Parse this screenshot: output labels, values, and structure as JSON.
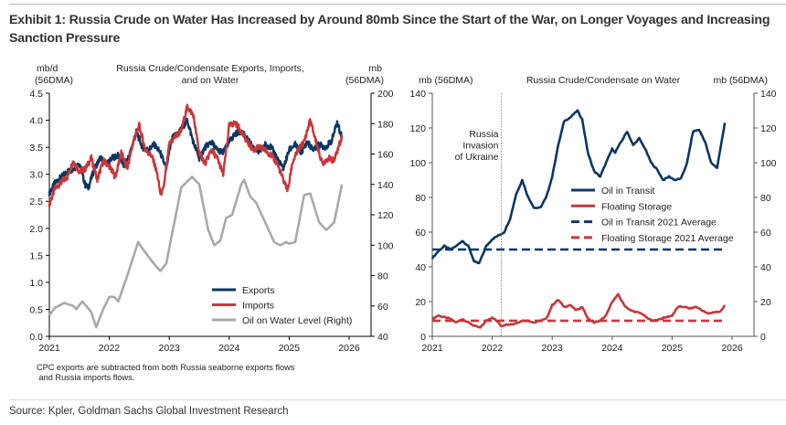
{
  "exhibit_title": "Exhibit 1: Russia Crude on Water Has Increased by Around 80mb Since the Start of the War, on Longer Voyages and Increasing Sanction Pressure",
  "footnote": "CPC exports are subtracted from both Russia seaborne exports flows\n and Russia imports flows.",
  "source": "Source: Kpler, Goldman Sachs Global Investment Research",
  "colors": {
    "navy": "#0b3765",
    "red": "#c8363a",
    "gray": "#a9a9a9"
  },
  "chart_data": [
    {
      "type": "line",
      "title": "Russia Crude/Condensate Exports, Imports,\nand on Water",
      "title_lines": [
        "Russia Crude/Condensate Exports, Imports,",
        "and on Water"
      ],
      "ylabel_left_lines": [
        "mb/d",
        "(56DMA)"
      ],
      "ylabel_right_lines": [
        "mb",
        "(56DMA)"
      ],
      "xlim": [
        2021,
        2026.4
      ],
      "ylim_left": [
        0,
        4.5
      ],
      "ylim_right": [
        40,
        200
      ],
      "x_ticks": [
        "2021",
        "2022",
        "2023",
        "2024",
        "2025",
        "2026"
      ],
      "y_ticks_left": [
        "0.0",
        "0.5",
        "1.0",
        "1.5",
        "2.0",
        "2.5",
        "3.0",
        "3.5",
        "4.0",
        "4.5"
      ],
      "y_ticks_right": [
        "40",
        "60",
        "80",
        "100",
        "120",
        "140",
        "160",
        "180",
        "200"
      ],
      "legend_position": "bottom-right",
      "series": [
        {
          "name": "Exports",
          "axis": "left",
          "color": "#0b3765",
          "x": [
            2021.0,
            2021.1,
            2021.2,
            2021.3,
            2021.4,
            2021.5,
            2021.6,
            2021.65,
            2021.75,
            2021.85,
            2021.95,
            2022.05,
            2022.15,
            2022.25,
            2022.35,
            2022.45,
            2022.55,
            2022.65,
            2022.75,
            2022.85,
            2022.95,
            2023.05,
            2023.15,
            2023.3,
            2023.4,
            2023.5,
            2023.6,
            2023.7,
            2023.8,
            2023.9,
            2024.0,
            2024.1,
            2024.2,
            2024.3,
            2024.4,
            2024.5,
            2024.6,
            2024.7,
            2024.8,
            2024.9,
            2025.0,
            2025.1,
            2025.2,
            2025.3,
            2025.4,
            2025.5,
            2025.6,
            2025.7,
            2025.8,
            2025.88
          ],
          "values": [
            2.65,
            2.85,
            2.95,
            3.05,
            3.1,
            3.2,
            2.8,
            2.75,
            3.1,
            3.3,
            3.2,
            3.3,
            3.35,
            3.15,
            3.4,
            3.8,
            3.5,
            3.45,
            3.55,
            3.4,
            3.1,
            3.7,
            3.75,
            4.0,
            3.6,
            3.3,
            3.5,
            3.6,
            3.45,
            3.4,
            3.6,
            3.75,
            3.8,
            3.65,
            3.5,
            3.4,
            3.55,
            3.5,
            3.3,
            3.1,
            3.45,
            3.55,
            3.4,
            3.6,
            3.45,
            3.55,
            3.5,
            3.6,
            3.95,
            3.7
          ]
        },
        {
          "name": "Imports",
          "axis": "left",
          "color": "#c8363a",
          "x": [
            2021.0,
            2021.1,
            2021.2,
            2021.3,
            2021.4,
            2021.5,
            2021.6,
            2021.7,
            2021.8,
            2021.9,
            2022.0,
            2022.1,
            2022.2,
            2022.3,
            2022.4,
            2022.5,
            2022.6,
            2022.7,
            2022.75,
            2022.8,
            2022.85,
            2022.9,
            2023.0,
            2023.1,
            2023.2,
            2023.3,
            2023.4,
            2023.5,
            2023.6,
            2023.7,
            2023.8,
            2023.9,
            2024.0,
            2024.1,
            2024.2,
            2024.3,
            2024.4,
            2024.5,
            2024.6,
            2024.7,
            2024.8,
            2024.9,
            2024.98,
            2025.05,
            2025.15,
            2025.25,
            2025.35,
            2025.45,
            2025.55,
            2025.65,
            2025.75,
            2025.88
          ],
          "values": [
            2.45,
            2.75,
            2.85,
            2.95,
            3.25,
            3.05,
            3.1,
            3.3,
            2.9,
            3.25,
            3.15,
            2.95,
            3.4,
            3.1,
            3.6,
            3.9,
            3.45,
            3.35,
            3.2,
            3.0,
            2.65,
            2.7,
            3.55,
            3.7,
            3.8,
            4.25,
            4.1,
            3.4,
            3.2,
            3.45,
            3.3,
            3.0,
            3.9,
            3.95,
            3.8,
            3.6,
            3.45,
            3.5,
            3.45,
            3.35,
            3.2,
            2.9,
            2.7,
            3.2,
            3.45,
            3.6,
            4.0,
            3.6,
            3.2,
            3.3,
            3.25,
            3.7
          ]
        },
        {
          "name": "Oil on Water Level (Right)",
          "axis": "right",
          "color": "#a9a9a9",
          "x": [
            2021.0,
            2021.1,
            2021.25,
            2021.4,
            2021.45,
            2021.55,
            2021.7,
            2021.78,
            2021.9,
            2022.0,
            2022.08,
            2022.15,
            2022.3,
            2022.48,
            2022.55,
            2022.7,
            2022.85,
            2022.95,
            2023.0,
            2023.2,
            2023.3,
            2023.38,
            2023.5,
            2023.65,
            2023.75,
            2023.85,
            2023.95,
            2024.05,
            2024.2,
            2024.25,
            2024.35,
            2024.45,
            2024.6,
            2024.75,
            2024.85,
            2024.95,
            2025.0,
            2025.1,
            2025.25,
            2025.35,
            2025.5,
            2025.62,
            2025.75,
            2025.88
          ],
          "values": [
            54,
            59,
            62,
            60,
            58,
            63,
            56,
            46,
            58,
            66,
            66,
            63,
            80,
            102,
            98,
            90,
            83,
            88,
            98,
            138,
            142,
            145,
            140,
            110,
            100,
            103,
            118,
            120,
            140,
            143,
            132,
            128,
            115,
            102,
            100,
            102,
            101,
            102,
            133,
            134,
            115,
            110,
            115,
            140
          ]
        }
      ]
    },
    {
      "type": "line",
      "title": "Russia Crude/Condensate on Water",
      "ylabel_left": "mb (56DMA)",
      "ylabel_right": "mb (56DMA)",
      "xlim": [
        2021,
        2026.4
      ],
      "ylim": [
        0,
        140
      ],
      "x_ticks": [
        "2021",
        "2022",
        "2023",
        "2024",
        "2025",
        "2026"
      ],
      "y_ticks": [
        "0",
        "20",
        "40",
        "60",
        "80",
        "100",
        "120",
        "140"
      ],
      "legend_position": "center-right",
      "annotation": {
        "x": 2022.15,
        "lines": [
          "Russia",
          "Invasion",
          "of Ukraine"
        ]
      },
      "series": [
        {
          "name": "Oil in Transit",
          "style": "solid",
          "color": "#0b3765",
          "x": [
            2021.0,
            2021.1,
            2021.2,
            2021.3,
            2021.4,
            2021.5,
            2021.6,
            2021.7,
            2021.78,
            2021.9,
            2022.0,
            2022.1,
            2022.2,
            2022.3,
            2022.4,
            2022.5,
            2022.6,
            2022.7,
            2022.8,
            2022.9,
            2023.0,
            2023.1,
            2023.2,
            2023.3,
            2023.42,
            2023.5,
            2023.6,
            2023.7,
            2023.8,
            2023.9,
            2024.0,
            2024.05,
            2024.15,
            2024.25,
            2024.35,
            2024.45,
            2024.55,
            2024.65,
            2024.75,
            2024.85,
            2024.95,
            2025.05,
            2025.15,
            2025.25,
            2025.35,
            2025.45,
            2025.55,
            2025.65,
            2025.75,
            2025.88
          ],
          "values": [
            45,
            49,
            52,
            50,
            52,
            55,
            52,
            43,
            42,
            52,
            56,
            58,
            60,
            68,
            82,
            90,
            80,
            74,
            74,
            80,
            92,
            110,
            124,
            126,
            130,
            125,
            105,
            95,
            92,
            100,
            108,
            106,
            112,
            118,
            110,
            114,
            108,
            100,
            96,
            90,
            92,
            90,
            91,
            100,
            118,
            119,
            112,
            100,
            97,
            123
          ]
        },
        {
          "name": "Floating Storage",
          "style": "solid",
          "color": "#c8363a",
          "x": [
            2021.0,
            2021.1,
            2021.2,
            2021.3,
            2021.4,
            2021.5,
            2021.6,
            2021.7,
            2021.8,
            2021.9,
            2022.0,
            2022.1,
            2022.15,
            2022.25,
            2022.35,
            2022.5,
            2022.6,
            2022.7,
            2022.8,
            2022.9,
            2023.0,
            2023.1,
            2023.2,
            2023.3,
            2023.4,
            2023.5,
            2023.6,
            2023.7,
            2023.8,
            2023.9,
            2024.0,
            2024.1,
            2024.2,
            2024.3,
            2024.4,
            2024.5,
            2024.6,
            2024.7,
            2024.8,
            2024.9,
            2025.0,
            2025.1,
            2025.2,
            2025.3,
            2025.4,
            2025.5,
            2025.6,
            2025.7,
            2025.8,
            2025.88
          ],
          "values": [
            10,
            12,
            11,
            10,
            8,
            10,
            8,
            6,
            5,
            9,
            11,
            8,
            6,
            7,
            7,
            9,
            9,
            8,
            9,
            10,
            18,
            21,
            17,
            18,
            15,
            17,
            10,
            8,
            9,
            12,
            20,
            24,
            18,
            15,
            14,
            13,
            10,
            9,
            10,
            11,
            12,
            17,
            17,
            16,
            17,
            15,
            13,
            14,
            14,
            18
          ]
        },
        {
          "name": "Oil in Transit 2021 Average",
          "style": "dashed",
          "color": "#0b3765",
          "x": [
            2021.0,
            2025.88
          ],
          "values": [
            50,
            50
          ]
        },
        {
          "name": "Floating Storage 2021 Average",
          "style": "dashed",
          "color": "#c8363a",
          "x": [
            2021.0,
            2025.88
          ],
          "values": [
            9,
            9
          ]
        }
      ]
    }
  ]
}
